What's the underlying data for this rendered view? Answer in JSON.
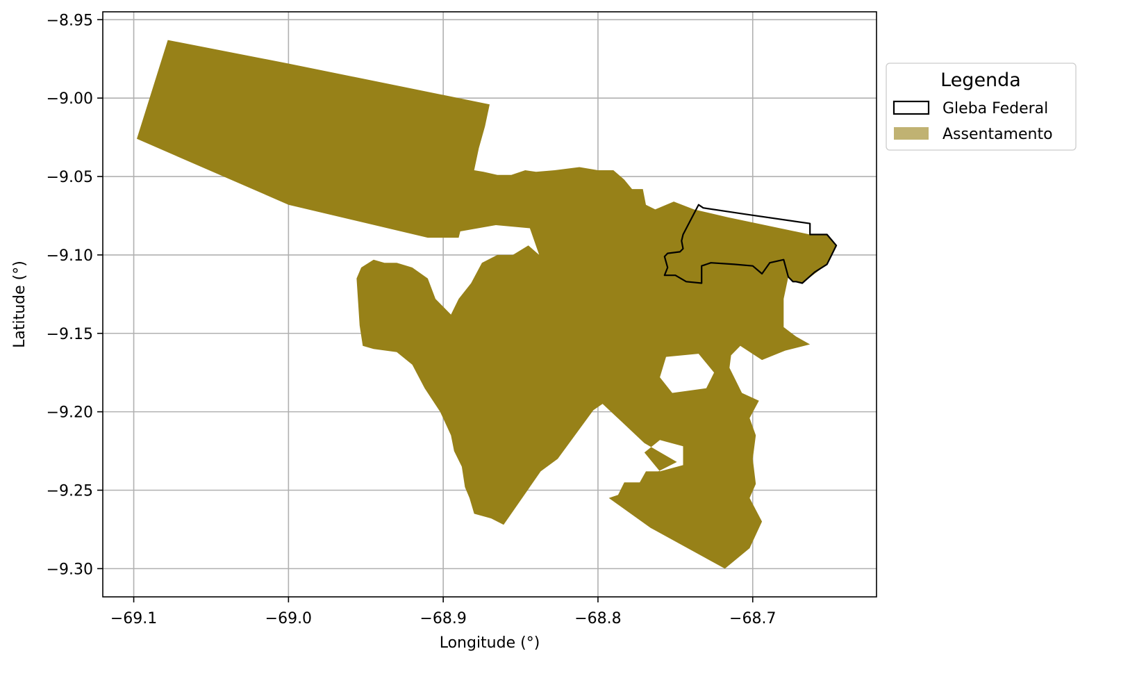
{
  "chart_data": {
    "type": "map",
    "xlabel": "Longitude (°)",
    "ylabel": "Latitude (°)",
    "xlim": [
      -69.12,
      -68.62
    ],
    "ylim": [
      -9.318,
      -8.945
    ],
    "x_ticks": [
      -69.1,
      -69.0,
      -68.9,
      -68.8,
      -68.7
    ],
    "x_tick_labels": [
      "−69.1",
      "−69.0",
      "−68.9",
      "−68.8",
      "−68.7"
    ],
    "y_ticks": [
      -8.95,
      -9.0,
      -9.05,
      -9.1,
      -9.15,
      -9.2,
      -9.25,
      -9.3
    ],
    "y_tick_labels": [
      "−8.95",
      "−9.00",
      "−9.05",
      "−9.10",
      "−9.15",
      "−9.20",
      "−9.25",
      "−9.30"
    ],
    "grid": true,
    "legend": {
      "title": "Legenda",
      "placement": "outside-right-top",
      "items": [
        {
          "label": "Gleba Federal",
          "style": "outline",
          "color": "#000000"
        },
        {
          "label": "Assentamento",
          "style": "fill",
          "color": "#c0b272"
        }
      ]
    },
    "colors": {
      "assentamento_fill": "#978118",
      "gleba_stroke": "#000000",
      "grid": "#b0b0b0"
    },
    "layers": [
      {
        "name": "Assentamento",
        "polygons": [
          [
            [
              -69.078,
              -8.963
            ],
            [
              -69.0,
              -8.978
            ],
            [
              -68.87,
              -9.004
            ],
            [
              -68.873,
              -9.018
            ],
            [
              -68.877,
              -9.032
            ],
            [
              -68.88,
              -9.046
            ],
            [
              -68.874,
              -9.047
            ],
            [
              -68.865,
              -9.049
            ],
            [
              -68.856,
              -9.049
            ],
            [
              -68.847,
              -9.046
            ],
            [
              -68.84,
              -9.047
            ],
            [
              -68.828,
              -9.046
            ],
            [
              -68.812,
              -9.044
            ],
            [
              -68.8,
              -9.046
            ],
            [
              -68.79,
              -9.046
            ],
            [
              -68.783,
              -9.052
            ],
            [
              -68.778,
              -9.058
            ],
            [
              -68.771,
              -9.058
            ],
            [
              -68.769,
              -9.068
            ],
            [
              -68.763,
              -9.071
            ],
            [
              -68.751,
              -9.066
            ],
            [
              -68.738,
              -9.071
            ],
            [
              -68.716,
              -9.076
            ],
            [
              -68.663,
              -9.087
            ],
            [
              -68.652,
              -9.087
            ],
            [
              -68.646,
              -9.094
            ],
            [
              -68.652,
              -9.106
            ],
            [
              -68.668,
              -9.118
            ],
            [
              -68.672,
              -9.117
            ],
            [
              -68.674,
              -9.117
            ],
            [
              -68.677,
              -9.114
            ],
            [
              -68.68,
              -9.128
            ],
            [
              -68.68,
              -9.146
            ],
            [
              -68.672,
              -9.152
            ],
            [
              -68.663,
              -9.157
            ],
            [
              -68.679,
              -9.161
            ],
            [
              -68.694,
              -9.167
            ],
            [
              -68.708,
              -9.158
            ],
            [
              -68.714,
              -9.164
            ],
            [
              -68.715,
              -9.172
            ],
            [
              -68.711,
              -9.18
            ],
            [
              -68.707,
              -9.188
            ],
            [
              -68.696,
              -9.193
            ],
            [
              -68.702,
              -9.204
            ],
            [
              -68.698,
              -9.215
            ],
            [
              -68.7,
              -9.23
            ],
            [
              -68.698,
              -9.246
            ],
            [
              -68.702,
              -9.255
            ],
            [
              -68.694,
              -9.27
            ],
            [
              -68.702,
              -9.287
            ],
            [
              -68.718,
              -9.3
            ],
            [
              -68.766,
              -9.274
            ],
            [
              -68.793,
              -9.255
            ],
            [
              -68.787,
              -9.253
            ],
            [
              -68.783,
              -9.245
            ],
            [
              -68.773,
              -9.245
            ],
            [
              -68.769,
              -9.238
            ],
            [
              -68.761,
              -9.238
            ],
            [
              -68.749,
              -9.232
            ],
            [
              -68.77,
              -9.22
            ],
            [
              -68.784,
              -9.207
            ],
            [
              -68.797,
              -9.195
            ],
            [
              -68.803,
              -9.199
            ],
            [
              -68.826,
              -9.23
            ],
            [
              -68.837,
              -9.238
            ],
            [
              -68.861,
              -9.272
            ],
            [
              -68.869,
              -9.268
            ],
            [
              -68.88,
              -9.265
            ],
            [
              -68.883,
              -9.255
            ],
            [
              -68.886,
              -9.248
            ],
            [
              -68.888,
              -9.235
            ],
            [
              -68.893,
              -9.225
            ],
            [
              -68.895,
              -9.215
            ],
            [
              -68.902,
              -9.2
            ],
            [
              -68.912,
              -9.185
            ],
            [
              -68.92,
              -9.17
            ],
            [
              -68.93,
              -9.162
            ],
            [
              -68.945,
              -9.16
            ],
            [
              -68.952,
              -9.158
            ],
            [
              -68.954,
              -9.145
            ],
            [
              -68.955,
              -9.13
            ],
            [
              -68.956,
              -9.115
            ],
            [
              -68.953,
              -9.108
            ],
            [
              -68.945,
              -9.103
            ],
            [
              -68.938,
              -9.105
            ],
            [
              -68.93,
              -9.105
            ],
            [
              -68.92,
              -9.108
            ],
            [
              -68.91,
              -9.115
            ],
            [
              -68.905,
              -9.128
            ],
            [
              -68.895,
              -9.138
            ],
            [
              -68.89,
              -9.128
            ],
            [
              -68.882,
              -9.118
            ],
            [
              -68.875,
              -9.105
            ],
            [
              -68.865,
              -9.1
            ],
            [
              -68.855,
              -9.1
            ],
            [
              -68.845,
              -9.094
            ],
            [
              -68.838,
              -9.1
            ],
            [
              -68.844,
              -9.083
            ],
            [
              -68.866,
              -9.081
            ],
            [
              -68.889,
              -9.085
            ],
            [
              -68.89,
              -9.089
            ],
            [
              -68.91,
              -9.089
            ],
            [
              -69.0,
              -9.068
            ],
            [
              -69.098,
              -9.026
            ]
          ]
        ],
        "holes": [
          [
            [
              -68.756,
              -9.165
            ],
            [
              -68.735,
              -9.163
            ],
            [
              -68.725,
              -9.175
            ],
            [
              -68.73,
              -9.185
            ],
            [
              -68.752,
              -9.188
            ],
            [
              -68.76,
              -9.178
            ]
          ],
          [
            [
              -68.745,
              -9.222
            ],
            [
              -68.76,
              -9.218
            ],
            [
              -68.77,
              -9.226
            ],
            [
              -68.76,
              -9.238
            ],
            [
              -68.745,
              -9.234
            ]
          ]
        ]
      },
      {
        "name": "Gleba Federal",
        "polygons": [
          [
            [
              -68.735,
              -9.068
            ],
            [
              -68.732,
              -9.07
            ],
            [
              -68.705,
              -9.074
            ],
            [
              -68.663,
              -9.08
            ],
            [
              -68.663,
              -9.087
            ],
            [
              -68.652,
              -9.087
            ],
            [
              -68.646,
              -9.094
            ],
            [
              -68.652,
              -9.106
            ],
            [
              -68.66,
              -9.111
            ],
            [
              -68.668,
              -9.118
            ],
            [
              -68.672,
              -9.117
            ],
            [
              -68.674,
              -9.117
            ],
            [
              -68.677,
              -9.114
            ],
            [
              -68.68,
              -9.103
            ],
            [
              -68.689,
              -9.105
            ],
            [
              -68.694,
              -9.112
            ],
            [
              -68.7,
              -9.107
            ],
            [
              -68.712,
              -9.106
            ],
            [
              -68.727,
              -9.105
            ],
            [
              -68.733,
              -9.107
            ],
            [
              -68.733,
              -9.118
            ],
            [
              -68.743,
              -9.117
            ],
            [
              -68.75,
              -9.113
            ],
            [
              -68.757,
              -9.113
            ],
            [
              -68.755,
              -9.108
            ],
            [
              -68.757,
              -9.101
            ],
            [
              -68.755,
              -9.099
            ],
            [
              -68.747,
              -9.098
            ],
            [
              -68.745,
              -9.096
            ],
            [
              -68.746,
              -9.091
            ],
            [
              -68.745,
              -9.087
            ]
          ]
        ]
      }
    ]
  }
}
